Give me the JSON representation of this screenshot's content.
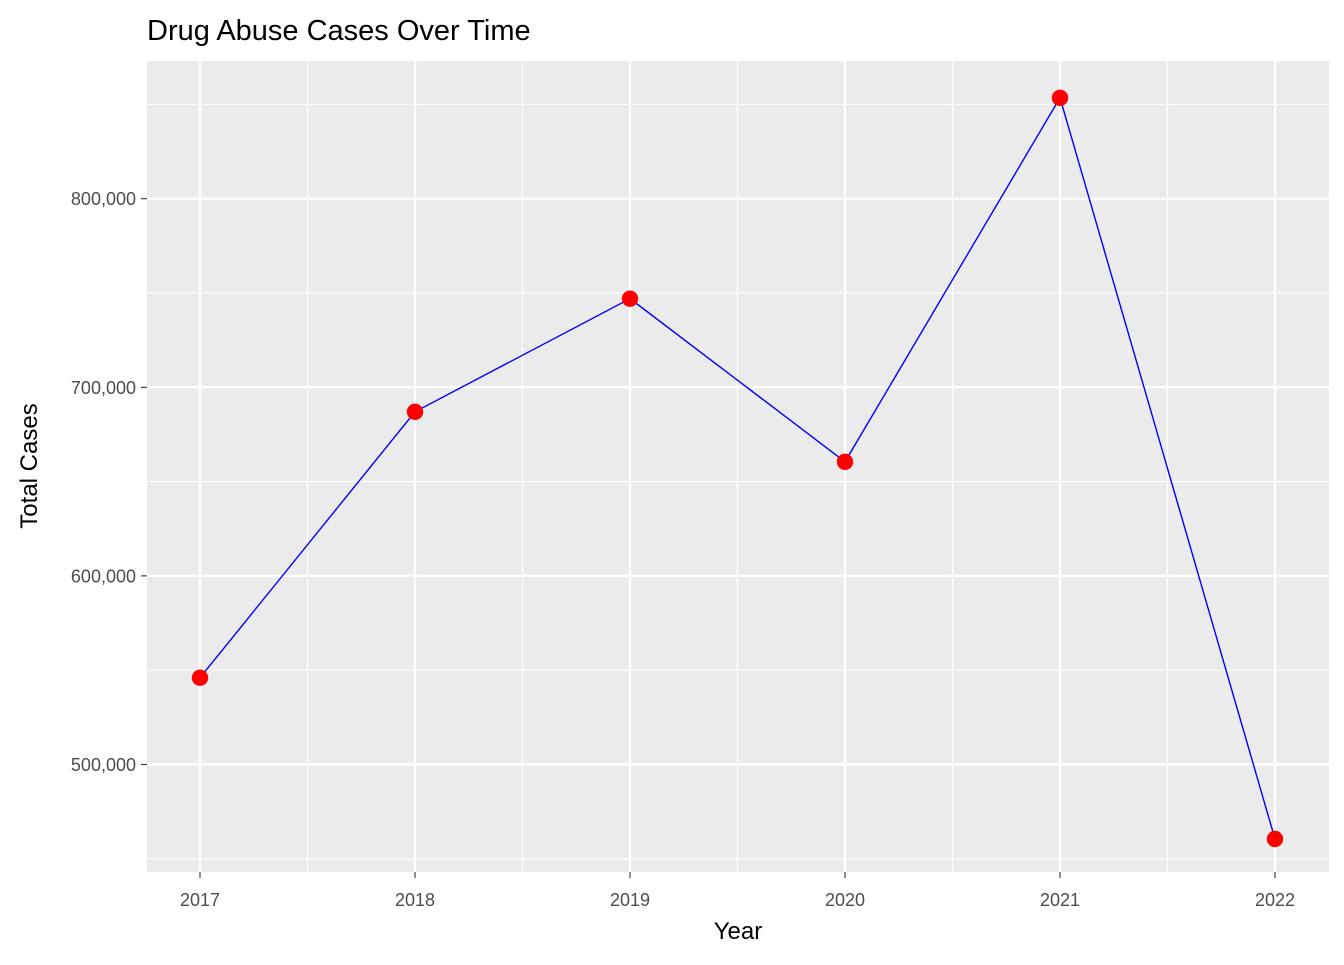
{
  "chart_data": {
    "type": "line",
    "title": "Drug Abuse Cases Over Time",
    "xlabel": "Year",
    "ylabel": "Total Cases",
    "x": [
      "2017",
      "2018",
      "2019",
      "2020",
      "2021",
      "2022"
    ],
    "series": [
      {
        "values": [
          546000,
          687000,
          747000,
          660500,
          853500,
          460500
        ],
        "line_color": "#0000ff",
        "point_color": "#ff0000"
      }
    ],
    "yticks": [
      500000,
      600000,
      700000,
      800000
    ],
    "ytick_labels": [
      "500,000",
      "600,000",
      "700,000",
      "800,000"
    ],
    "ylim": [
      443000,
      873000
    ],
    "grid": true,
    "legend": "none",
    "panel_background": "#ebebeb",
    "grid_color": "#ffffff"
  }
}
